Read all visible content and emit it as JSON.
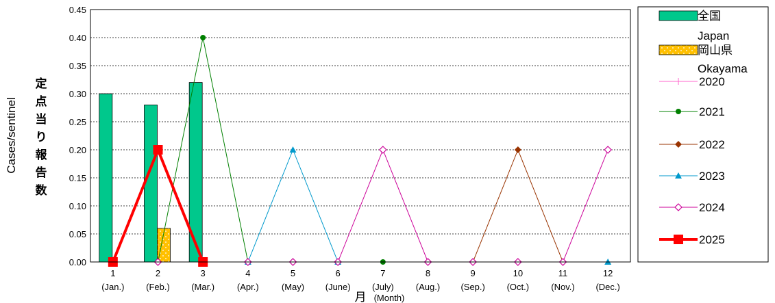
{
  "chart_data": {
    "type": "bar",
    "categories": [
      "1",
      "2",
      "3",
      "4",
      "5",
      "6",
      "7",
      "8",
      "9",
      "10",
      "11",
      "12"
    ],
    "category_sublabels": [
      "(Jan.)",
      "(Feb.)",
      "(Mar.)",
      "(Apr.)",
      "(May)",
      "(June)",
      "(July)",
      "(Aug.)",
      "(Sep.)",
      "(Oct.)",
      "(Nov.)",
      "(Dec.)"
    ],
    "xlabel": "月",
    "xlabel_sub": "(Month)",
    "ylabel": "Cases/sentinel",
    "ylabel_ja": "定点当り報告数",
    "ylim": [
      0,
      0.45
    ],
    "yticks": [
      "0.00",
      "0.05",
      "0.10",
      "0.15",
      "0.20",
      "0.25",
      "0.30",
      "0.35",
      "0.40",
      "0.45"
    ],
    "grid": true,
    "legend_position": "right",
    "bars": [
      {
        "name": "全国",
        "name_sub": "Japan",
        "color": "#00c88c",
        "values": [
          0.3,
          0.28,
          0.32,
          null,
          null,
          null,
          null,
          null,
          null,
          null,
          null,
          null
        ]
      },
      {
        "name": "岡山県",
        "name_sub": "Okayama",
        "color": "#ffc000",
        "values": [
          0,
          0.06,
          0,
          null,
          null,
          null,
          null,
          null,
          null,
          null,
          null,
          null
        ]
      }
    ],
    "series": [
      {
        "name": "2020",
        "color": "#ff66cc",
        "marker": "plus",
        "values": [
          null,
          null,
          null,
          null,
          null,
          null,
          null,
          null,
          null,
          null,
          null,
          null
        ]
      },
      {
        "name": "2021",
        "color": "#008000",
        "marker": "circle",
        "values": [
          null,
          0,
          0.4,
          0,
          null,
          null,
          0,
          null,
          null,
          null,
          null,
          null
        ]
      },
      {
        "name": "2022",
        "color": "#993300",
        "marker": "diamond",
        "values": [
          null,
          null,
          null,
          null,
          null,
          null,
          null,
          null,
          0,
          0.2,
          0,
          null
        ]
      },
      {
        "name": "2023",
        "color": "#0099cc",
        "marker": "triangle",
        "values": [
          null,
          null,
          null,
          0,
          0.2,
          0,
          null,
          null,
          null,
          null,
          null,
          0
        ]
      },
      {
        "name": "2024",
        "color": "#cc0099",
        "marker": "diamond-open",
        "values": [
          0,
          0,
          0,
          0,
          0,
          0,
          0.2,
          0,
          0,
          0,
          0,
          0.2
        ]
      },
      {
        "name": "2025",
        "color": "#ff0000",
        "marker": "square",
        "values": [
          0,
          0.2,
          0,
          null,
          null,
          null,
          null,
          null,
          null,
          null,
          null,
          null
        ]
      }
    ]
  }
}
